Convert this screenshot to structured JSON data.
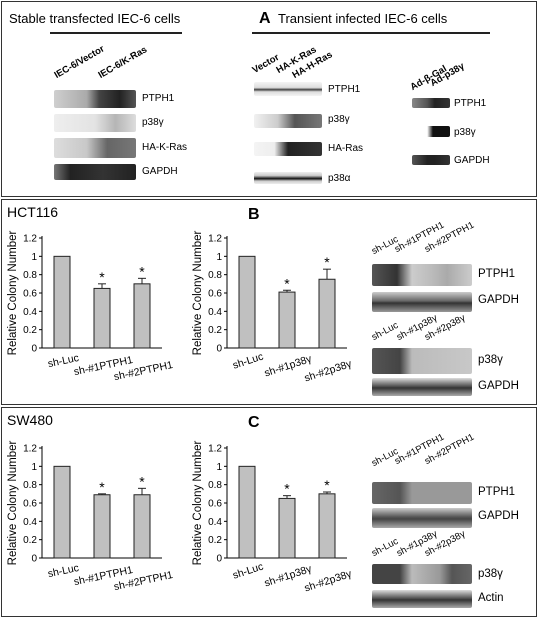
{
  "panel_a": {
    "letter": "A",
    "stable_title": "Stable transfected IEC-6 cells",
    "transient_title": "Transient infected IEC-6 cells",
    "stable_lanes": [
      "IEC-6/Vector",
      "IEC-6/K-Ras"
    ],
    "stable_bands": [
      "PTPH1",
      "p38γ",
      "HA-K-Ras",
      "GAPDH"
    ],
    "transient_lanes": [
      "Vector",
      "HA-K-Ras",
      "HA-H-Ras"
    ],
    "transient_bands": [
      "PTPH1",
      "p38γ",
      "HA-Ras",
      "p38α"
    ],
    "adeno_lanes": [
      "Ad-β-Gal",
      "Ad-p38γ"
    ],
    "adeno_bands": [
      "PTPH1",
      "p38γ",
      "GAPDH"
    ]
  },
  "panel_b": {
    "letter": "B",
    "cell_line": "HCT116",
    "wb_ptph1_lanes": [
      "sh-Luc",
      "sh-#1PTPH1",
      "sh-#2PTPH1"
    ],
    "wb_ptph1_bands": [
      "PTPH1",
      "GAPDH"
    ],
    "wb_p38_lanes": [
      "sh-Luc",
      "sh-#1p38γ",
      "sh-#2p38γ"
    ],
    "wb_p38_bands": [
      "p38γ",
      "GAPDH"
    ]
  },
  "panel_c": {
    "letter": "C",
    "cell_line": "SW480",
    "wb_ptph1_lanes": [
      "sh-Luc",
      "sh-#1PTPH1",
      "sh-#2PTPH1"
    ],
    "wb_ptph1_bands": [
      "PTPH1",
      "GAPDH"
    ],
    "wb_p38_lanes": [
      "sh-Luc",
      "sh-#1p38γ",
      "sh-#2p38γ"
    ],
    "wb_p38_bands": [
      "p38γ",
      "Actin"
    ]
  },
  "chart_data": [
    {
      "type": "bar",
      "id": "b1",
      "ylabel": "Relative Colony Number",
      "ylim": [
        0,
        1.2
      ],
      "yticks": [
        "0",
        "0.2",
        "0.4",
        "0.6",
        "0.8",
        "1",
        "1.2"
      ],
      "categories": [
        "sh-Luc",
        "sh-#1PTPH1",
        "sh-#2PTPH1"
      ],
      "values": [
        1.0,
        0.65,
        0.7
      ],
      "errors": [
        0,
        0.05,
        0.06
      ],
      "significance": [
        "",
        "*",
        "*"
      ]
    },
    {
      "type": "bar",
      "id": "b2",
      "ylabel": "Relative Colony Number",
      "ylim": [
        0,
        1.2
      ],
      "yticks": [
        "0",
        "0.2",
        "0.4",
        "0.6",
        "0.8",
        "1",
        "1.2"
      ],
      "categories": [
        "sh-Luc",
        "sh-#1p38γ",
        "sh-#2p38γ"
      ],
      "values": [
        1.0,
        0.61,
        0.75
      ],
      "errors": [
        0,
        0.02,
        0.11
      ],
      "significance": [
        "",
        "*",
        "*"
      ]
    },
    {
      "type": "bar",
      "id": "c1",
      "ylabel": "Relative Colony Number",
      "ylim": [
        0,
        1.2
      ],
      "yticks": [
        "0",
        "0.2",
        "0.4",
        "0.6",
        "0.8",
        "1",
        "1.2"
      ],
      "categories": [
        "sh-Luc",
        "sh-#1PTPH1",
        "sh-#2PTPH1"
      ],
      "values": [
        1.0,
        0.69,
        0.69
      ],
      "errors": [
        0,
        0.01,
        0.07
      ],
      "significance": [
        "",
        "*",
        "*"
      ]
    },
    {
      "type": "bar",
      "id": "c2",
      "ylabel": "Relative Colony Number",
      "ylim": [
        0,
        1.2
      ],
      "yticks": [
        "0",
        "0.2",
        "0.4",
        "0.6",
        "0.8",
        "1",
        "1.2"
      ],
      "categories": [
        "sh-Luc",
        "sh-#1p38γ",
        "sh-#2p38γ"
      ],
      "values": [
        1.0,
        0.65,
        0.7
      ],
      "errors": [
        0,
        0.03,
        0.02
      ],
      "significance": [
        "",
        "*",
        "*"
      ]
    }
  ]
}
